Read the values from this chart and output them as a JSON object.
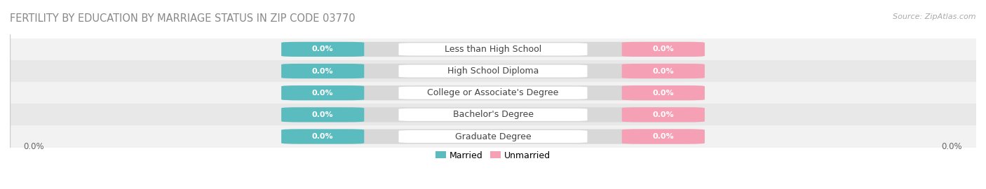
{
  "title": "FERTILITY BY EDUCATION BY MARRIAGE STATUS IN ZIP CODE 03770",
  "source": "Source: ZipAtlas.com",
  "categories": [
    "Less than High School",
    "High School Diploma",
    "College or Associate's Degree",
    "Bachelor's Degree",
    "Graduate Degree"
  ],
  "married_values": [
    0.0,
    0.0,
    0.0,
    0.0,
    0.0
  ],
  "unmarried_values": [
    0.0,
    0.0,
    0.0,
    0.0,
    0.0
  ],
  "married_color": "#5bbcbf",
  "unmarried_color": "#f5a0b5",
  "row_bg_even": "#f2f2f2",
  "row_bg_odd": "#e8e8e8",
  "bar_bg_color": "#d8d8d8",
  "married_label": "Married",
  "unmarried_label": "Unmarried",
  "title_fontsize": 10.5,
  "source_fontsize": 8,
  "category_fontsize": 9,
  "value_fontsize": 8,
  "legend_fontsize": 9,
  "axis_label_fontsize": 8.5,
  "background_color": "#ffffff"
}
